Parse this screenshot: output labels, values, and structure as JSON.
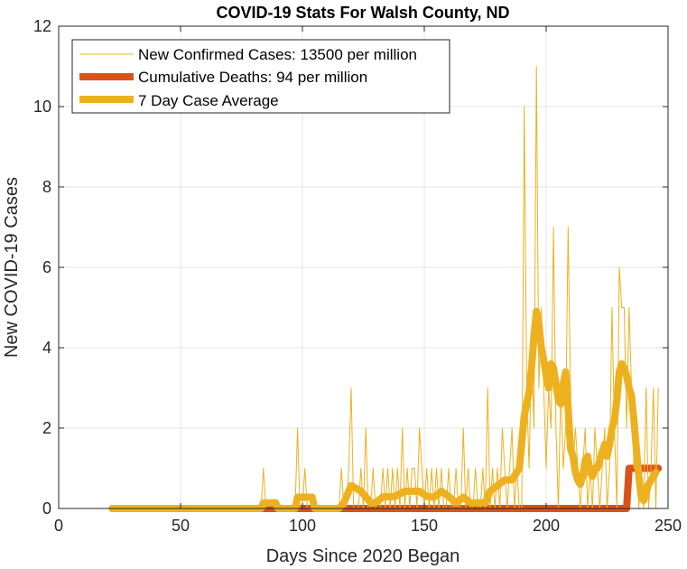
{
  "chart_data": {
    "type": "line",
    "title": "COVID-19 Stats For Walsh County, ND",
    "xlabel": "Days Since 2020 Began",
    "ylabel": "New COVID-19 Cases",
    "xlim": [
      0,
      250
    ],
    "ylim": [
      0,
      12
    ],
    "xticks": [
      0,
      50,
      100,
      150,
      200,
      250
    ],
    "yticks": [
      0,
      2,
      4,
      6,
      8,
      10,
      12
    ],
    "grid": true,
    "legend_position": "top-left",
    "series": [
      {
        "name": "New Confirmed Cases: 13500 per million",
        "color": "#EDB120",
        "points": [
          [
            22,
            0
          ],
          [
            83,
            0
          ],
          [
            84,
            1
          ],
          [
            85,
            0
          ],
          [
            97,
            0
          ],
          [
            98,
            2
          ],
          [
            99,
            0
          ],
          [
            100,
            0
          ],
          [
            101,
            1
          ],
          [
            102,
            0
          ],
          [
            115,
            0
          ],
          [
            116,
            1
          ],
          [
            117,
            0
          ],
          [
            118,
            0
          ],
          [
            119,
            1
          ],
          [
            120,
            3
          ],
          [
            121,
            0
          ],
          [
            123,
            0
          ],
          [
            124,
            1
          ],
          [
            125,
            0
          ],
          [
            126,
            2
          ],
          [
            127,
            0
          ],
          [
            128,
            0
          ],
          [
            129,
            1
          ],
          [
            130,
            0
          ],
          [
            132,
            0
          ],
          [
            133,
            1
          ],
          [
            134,
            0
          ],
          [
            135,
            1
          ],
          [
            136,
            0
          ],
          [
            137,
            1
          ],
          [
            138,
            0
          ],
          [
            139,
            1
          ],
          [
            140,
            0
          ],
          [
            141,
            2
          ],
          [
            142,
            0
          ],
          [
            143,
            1
          ],
          [
            144,
            0
          ],
          [
            145,
            1
          ],
          [
            146,
            1
          ],
          [
            147,
            0
          ],
          [
            148,
            2
          ],
          [
            149,
            1
          ],
          [
            150,
            0
          ],
          [
            151,
            1
          ],
          [
            152,
            0
          ],
          [
            153,
            1
          ],
          [
            154,
            0
          ],
          [
            155,
            1
          ],
          [
            156,
            0
          ],
          [
            157,
            1
          ],
          [
            158,
            0
          ],
          [
            159,
            0
          ],
          [
            160,
            1
          ],
          [
            161,
            0
          ],
          [
            162,
            0
          ],
          [
            163,
            1
          ],
          [
            164,
            0
          ],
          [
            165,
            0
          ],
          [
            166,
            2
          ],
          [
            167,
            0
          ],
          [
            168,
            1
          ],
          [
            169,
            0
          ],
          [
            170,
            0
          ],
          [
            171,
            1
          ],
          [
            172,
            0
          ],
          [
            173,
            0
          ],
          [
            174,
            1
          ],
          [
            175,
            0
          ],
          [
            176,
            3
          ],
          [
            177,
            0
          ],
          [
            178,
            1
          ],
          [
            179,
            0
          ],
          [
            180,
            1
          ],
          [
            181,
            0
          ],
          [
            182,
            2
          ],
          [
            183,
            1
          ],
          [
            184,
            0
          ],
          [
            185,
            1
          ],
          [
            186,
            2
          ],
          [
            187,
            0
          ],
          [
            188,
            1
          ],
          [
            189,
            0
          ],
          [
            190,
            0
          ],
          [
            191,
            10
          ],
          [
            192,
            3
          ],
          [
            193,
            1
          ],
          [
            194,
            4
          ],
          [
            195,
            2
          ],
          [
            196,
            11
          ],
          [
            197,
            3
          ],
          [
            198,
            5
          ],
          [
            199,
            3
          ],
          [
            200,
            1
          ],
          [
            201,
            3
          ],
          [
            202,
            2
          ],
          [
            203,
            7
          ],
          [
            204,
            2
          ],
          [
            205,
            0
          ],
          [
            206,
            3
          ],
          [
            207,
            1
          ],
          [
            208,
            2
          ],
          [
            209,
            7
          ],
          [
            210,
            3
          ],
          [
            211,
            1
          ],
          [
            212,
            2
          ],
          [
            213,
            1
          ],
          [
            214,
            0
          ],
          [
            215,
            1
          ],
          [
            216,
            2
          ],
          [
            217,
            0
          ],
          [
            218,
            1
          ],
          [
            219,
            0
          ],
          [
            220,
            2
          ],
          [
            221,
            1
          ],
          [
            222,
            0
          ],
          [
            223,
            1
          ],
          [
            224,
            2
          ],
          [
            225,
            0
          ],
          [
            226,
            1
          ],
          [
            227,
            5
          ],
          [
            228,
            2
          ],
          [
            229,
            0
          ],
          [
            230,
            6
          ],
          [
            231,
            5
          ],
          [
            232,
            5
          ],
          [
            233,
            2
          ],
          [
            234,
            5
          ],
          [
            235,
            3
          ],
          [
            236,
            1
          ],
          [
            237,
            2
          ],
          [
            238,
            0
          ],
          [
            239,
            1
          ],
          [
            240,
            0
          ],
          [
            241,
            3
          ],
          [
            242,
            0
          ],
          [
            243,
            1
          ],
          [
            244,
            3
          ],
          [
            245,
            0
          ],
          [
            246,
            3
          ]
        ]
      },
      {
        "name": "Cumulative Deaths: 94 per million",
        "color": "#D95319",
        "points": [
          [
            22,
            0
          ],
          [
            233,
            0
          ],
          [
            234,
            1
          ],
          [
            246,
            1
          ]
        ]
      },
      {
        "name": "7 Day Case Average",
        "color": "#EDB120",
        "points": [
          [
            22,
            0
          ],
          [
            83,
            0
          ],
          [
            84,
            0.14
          ],
          [
            89,
            0.14
          ],
          [
            90,
            0
          ],
          [
            97,
            0
          ],
          [
            98,
            0.28
          ],
          [
            104,
            0.28
          ],
          [
            105,
            0
          ],
          [
            115,
            0
          ],
          [
            117,
            0.14
          ],
          [
            120,
            0.57
          ],
          [
            124,
            0.43
          ],
          [
            126,
            0.29
          ],
          [
            128,
            0.14
          ],
          [
            130,
            0.14
          ],
          [
            133,
            0.29
          ],
          [
            136,
            0.29
          ],
          [
            138,
            0.3
          ],
          [
            142,
            0.43
          ],
          [
            145,
            0.43
          ],
          [
            148,
            0.43
          ],
          [
            151,
            0.3
          ],
          [
            154,
            0.28
          ],
          [
            157,
            0.43
          ],
          [
            160,
            0.3
          ],
          [
            163,
            0.14
          ],
          [
            166,
            0.28
          ],
          [
            169,
            0.14
          ],
          [
            172,
            0.14
          ],
          [
            175,
            0.14
          ],
          [
            177,
            0.43
          ],
          [
            180,
            0.57
          ],
          [
            183,
            0.71
          ],
          [
            186,
            0.71
          ],
          [
            189,
            1.0
          ],
          [
            191,
            2.3
          ],
          [
            193,
            2.9
          ],
          [
            194,
            3.5
          ],
          [
            195,
            4.3
          ],
          [
            196,
            4.9
          ],
          [
            197,
            4.6
          ],
          [
            198,
            4.0
          ],
          [
            199,
            3.7
          ],
          [
            200,
            3.3
          ],
          [
            201,
            3.0
          ],
          [
            202,
            3.6
          ],
          [
            203,
            3.5
          ],
          [
            204,
            3.1
          ],
          [
            205,
            2.7
          ],
          [
            206,
            2.6
          ],
          [
            207,
            3.1
          ],
          [
            208,
            3.4
          ],
          [
            209,
            2.5
          ],
          [
            210,
            1.5
          ],
          [
            211,
            1.3
          ],
          [
            212,
            0.9
          ],
          [
            213,
            0.7
          ],
          [
            214,
            0.6
          ],
          [
            215,
            0.8
          ],
          [
            216,
            1.2
          ],
          [
            217,
            1.3
          ],
          [
            218,
            0.9
          ],
          [
            219,
            0.8
          ],
          [
            220,
            1.0
          ],
          [
            221,
            1.0
          ],
          [
            222,
            1.2
          ],
          [
            223,
            1.4
          ],
          [
            224,
            1.6
          ],
          [
            225,
            1.3
          ],
          [
            226,
            1.6
          ],
          [
            227,
            2.0
          ],
          [
            228,
            2.2
          ],
          [
            229,
            2.7
          ],
          [
            230,
            3.4
          ],
          [
            231,
            3.6
          ],
          [
            232,
            3.5
          ],
          [
            233,
            3.3
          ],
          [
            234,
            3.0
          ],
          [
            235,
            2.8
          ],
          [
            236,
            2.2
          ],
          [
            237,
            1.5
          ],
          [
            238,
            0.8
          ],
          [
            239,
            0.3
          ],
          [
            240,
            0.2
          ],
          [
            241,
            0.4
          ],
          [
            242,
            0.6
          ],
          [
            243,
            0.7
          ],
          [
            244,
            0.8
          ],
          [
            245,
            0.9
          ]
        ]
      }
    ]
  }
}
